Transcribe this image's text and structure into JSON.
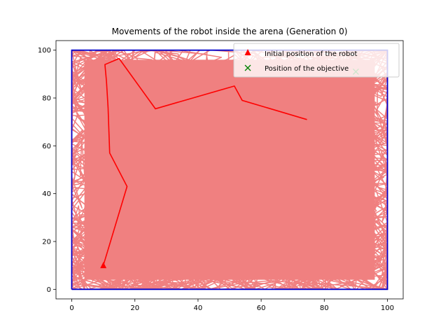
{
  "chart_data": {
    "type": "line",
    "title": "Movements of the robot inside the arena (Generation 0)",
    "xlabel": "",
    "ylabel": "",
    "xlim": [
      -5,
      105
    ],
    "ylim": [
      -4,
      104
    ],
    "x_ticks": [
      0,
      20,
      40,
      60,
      80,
      100
    ],
    "y_ticks": [
      0,
      20,
      40,
      60,
      80,
      100
    ],
    "grid": false,
    "legend_position": "top-right",
    "legend": [
      {
        "label": "Initial position of the robot",
        "marker": "triangle",
        "color": "#ff0000"
      },
      {
        "label": "Position of the objective",
        "marker": "x",
        "color": "#008000"
      }
    ],
    "arena": {
      "x": [
        0,
        100,
        100,
        0,
        0
      ],
      "y": [
        0,
        0,
        100,
        100,
        0
      ],
      "color": "#0000cc"
    },
    "background_paths": {
      "color": "#f08080",
      "description_count": 60,
      "x_range": [
        0,
        100
      ],
      "y_range": [
        0,
        100
      ]
    },
    "series": [
      {
        "color": "#ff0000",
        "x": [
          10,
          17.5,
          12,
          11.5,
          11,
          10.5,
          15,
          26.5,
          51.5,
          54,
          74.5
        ],
        "y": [
          10,
          43,
          57,
          76,
          87,
          94,
          96.5,
          75.5,
          85,
          79,
          71
        ]
      }
    ],
    "initial_position": {
      "x": 10,
      "y": 10
    },
    "objective_position": {
      "x": 90,
      "y": 91
    }
  }
}
